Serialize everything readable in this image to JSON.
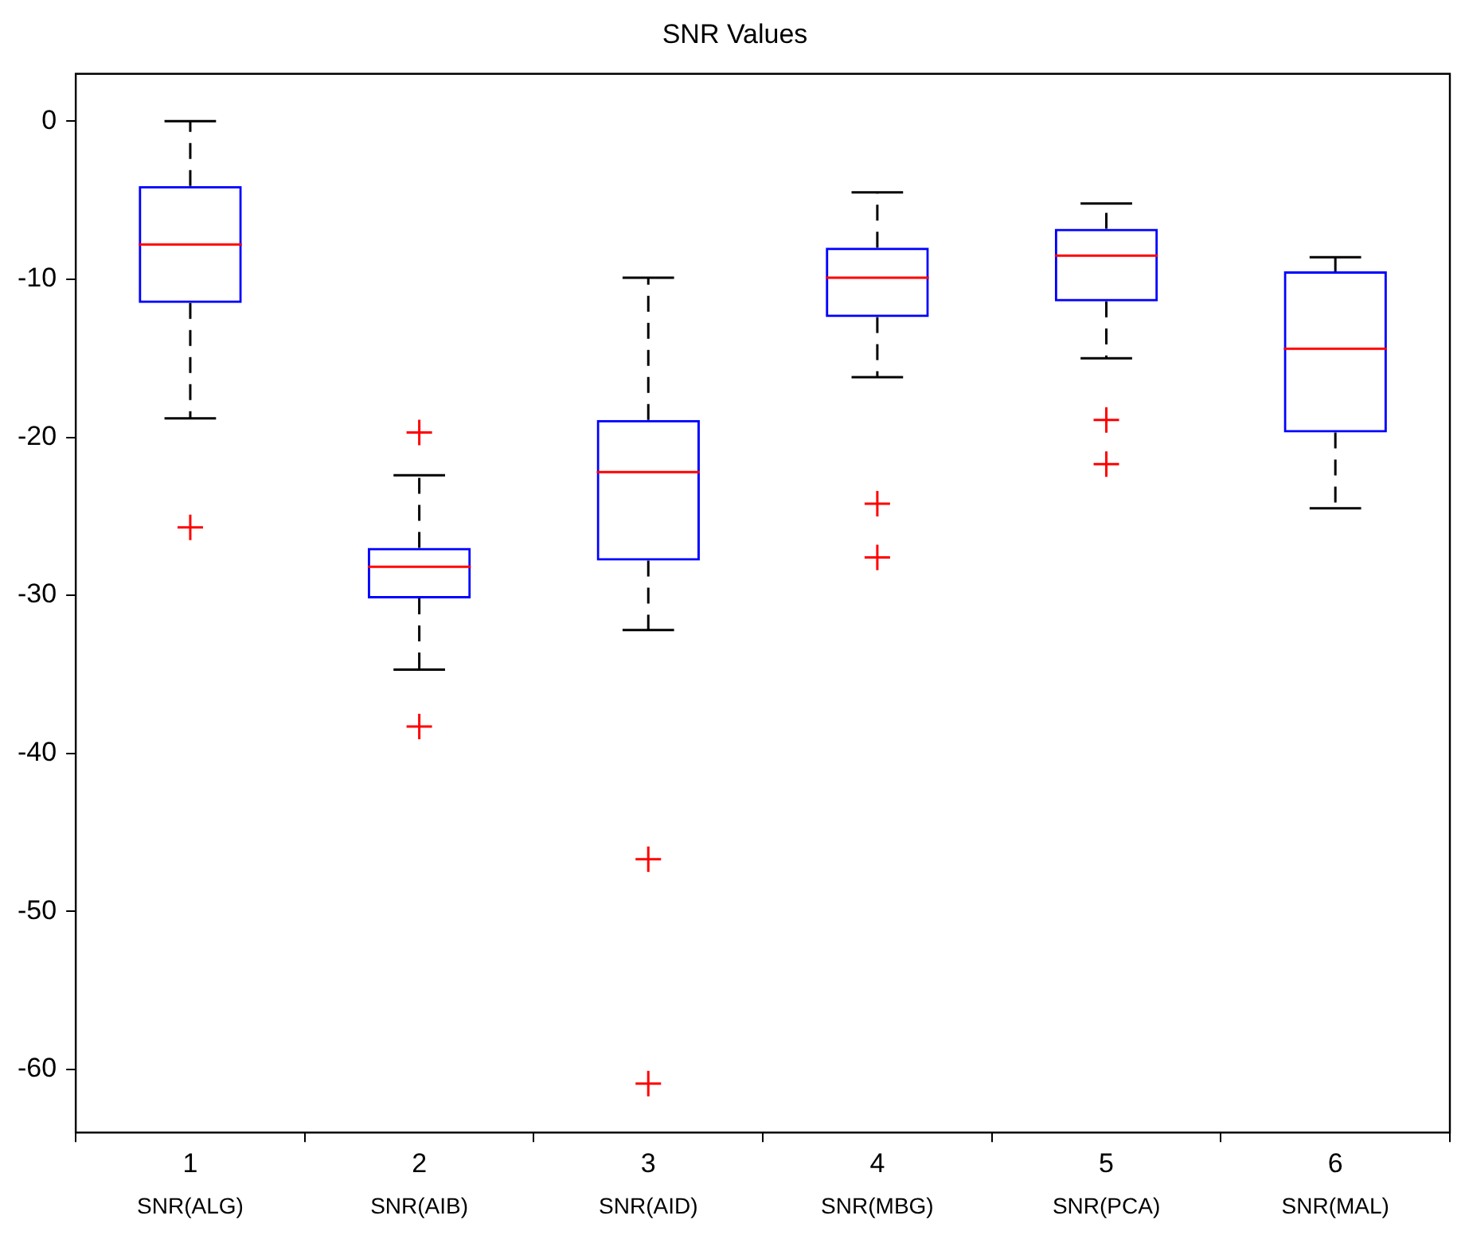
{
  "chart_data": {
    "type": "box",
    "title": "SNR Values",
    "categories": [
      "1",
      "2",
      "3",
      "4",
      "5",
      "6"
    ],
    "boxes": [
      {
        "low": -18.8,
        "q1": -11.5,
        "median": -7.8,
        "q3": -4.1,
        "high": 0,
        "outliers": [
          -25.7
        ]
      },
      {
        "low": -34.7,
        "q1": -30.2,
        "median": -28.2,
        "q3": -27.0,
        "high": -22.4,
        "outliers": [
          -19.7,
          -38.3
        ]
      },
      {
        "low": -32.2,
        "q1": -27.8,
        "median": -22.2,
        "q3": -18.9,
        "high": -9.9,
        "outliers": [
          -46.7,
          -60.9
        ]
      },
      {
        "low": -16.2,
        "q1": -12.4,
        "median": -9.9,
        "q3": -8.0,
        "high": -4.5,
        "outliers": [
          -24.2,
          -27.6
        ]
      },
      {
        "low": -15.0,
        "q1": -11.4,
        "median": -8.5,
        "q3": -6.8,
        "high": -5.2,
        "outliers": [
          -18.9,
          -21.7
        ]
      },
      {
        "low": -24.5,
        "q1": -19.7,
        "median": -14.4,
        "q3": -9.5,
        "high": -8.6
      }
    ],
    "color": "#0000ff",
    "marker": "cross",
    "ylim": [
      -64,
      3
    ],
    "yticks": [
      -60,
      -50,
      -40,
      -30,
      -20,
      -10,
      0
    ],
    "grid": false,
    "legend": false,
    "annotations": [
      "SNR(ALG)",
      "SNR(AIB)",
      "SNR(AID)",
      "SNR(MBG)",
      "SNR(PCA)",
      "SNR(MAL)"
    ]
  }
}
